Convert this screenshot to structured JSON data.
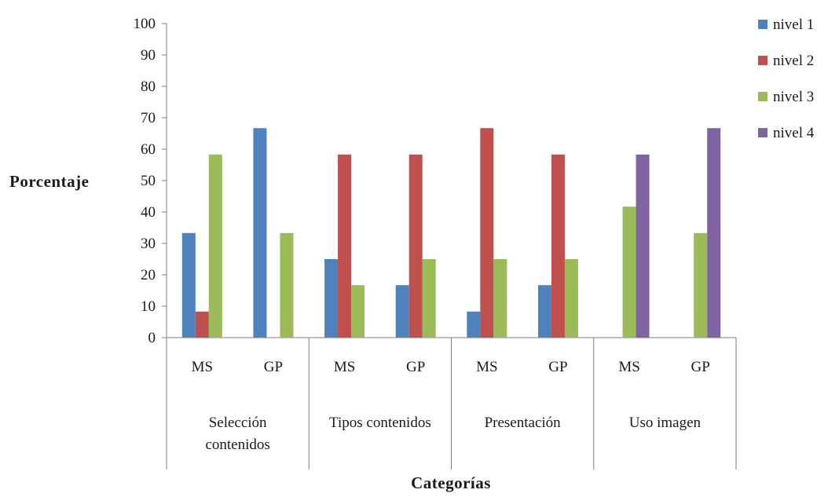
{
  "chart_data": {
    "type": "bar",
    "ylabel": "Porcentaje",
    "xlabel": "Categorías",
    "ylim": [
      0,
      100
    ],
    "yticks": [
      0,
      10,
      20,
      30,
      40,
      50,
      60,
      70,
      80,
      90,
      100
    ],
    "grid": false,
    "legend_position": "top-right",
    "groups": [
      {
        "label": "Selección contenidos",
        "lines": [
          "Selección",
          "contenidos"
        ]
      },
      {
        "label": "Tipos contenidos",
        "lines": [
          "Tipos contenidos"
        ]
      },
      {
        "label": "Presentación",
        "lines": [
          "Presentación"
        ]
      },
      {
        "label": "Uso imagen",
        "lines": [
          "Uso imagen"
        ]
      }
    ],
    "categories": [
      "MS",
      "GP",
      "MS",
      "GP",
      "MS",
      "GP",
      "MS",
      "GP"
    ],
    "series": [
      {
        "name": "nivel 1",
        "color": "#4F81BD",
        "values": [
          33.3,
          66.7,
          25,
          16.7,
          8.3,
          16.7,
          0,
          0
        ]
      },
      {
        "name": "nivel 2",
        "color": "#C0504D",
        "values": [
          8.3,
          0,
          58.3,
          58.3,
          66.7,
          58.3,
          0,
          0
        ]
      },
      {
        "name": "nivel 3",
        "color": "#9BBB59",
        "values": [
          58.3,
          33.3,
          16.7,
          25,
          25,
          25,
          41.7,
          33.3
        ]
      },
      {
        "name": "nivel 4",
        "color": "#8064A2",
        "values": [
          0,
          0,
          0,
          0,
          0,
          0,
          58.3,
          66.7
        ]
      }
    ]
  }
}
